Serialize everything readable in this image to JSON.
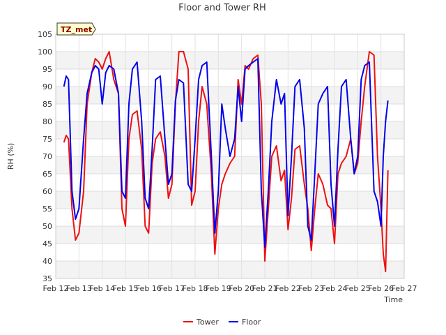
{
  "chart_data": {
    "type": "line",
    "title": "Floor and Tower RH",
    "xlabel": "Time",
    "ylabel": "RH (%)",
    "ylim": [
      35,
      105
    ],
    "yticks": [
      35,
      40,
      45,
      50,
      55,
      60,
      65,
      70,
      75,
      80,
      85,
      90,
      95,
      100,
      105
    ],
    "xlim": [
      12,
      27
    ],
    "xticks": [
      {
        "v": 12,
        "label": "Feb 12"
      },
      {
        "v": 13,
        "label": "Feb 13"
      },
      {
        "v": 14,
        "label": "Feb 14"
      },
      {
        "v": 15,
        "label": "Feb 15"
      },
      {
        "v": 16,
        "label": "Feb 16"
      },
      {
        "v": 17,
        "label": "Feb 17"
      },
      {
        "v": 18,
        "label": "Feb 18"
      },
      {
        "v": 19,
        "label": "Feb 19"
      },
      {
        "v": 20,
        "label": "Feb 20"
      },
      {
        "v": 21,
        "label": "Feb 21"
      },
      {
        "v": 22,
        "label": "Feb 22"
      },
      {
        "v": 23,
        "label": "Feb 23"
      },
      {
        "v": 24,
        "label": "Feb 24"
      },
      {
        "v": 25,
        "label": "Feb 25"
      },
      {
        "v": 26,
        "label": "Feb 26"
      },
      {
        "v": 27,
        "label": "Feb 27"
      }
    ],
    "badge": "TZ_met",
    "legend_position": "bottom-center",
    "series": [
      {
        "name": "Tower",
        "color": "#ee1111",
        "x": [
          12.35,
          12.45,
          12.55,
          12.7,
          12.85,
          13.0,
          13.2,
          13.35,
          13.55,
          13.7,
          13.85,
          14.0,
          14.15,
          14.3,
          14.5,
          14.7,
          14.85,
          15.0,
          15.15,
          15.3,
          15.5,
          15.7,
          15.85,
          16.0,
          16.15,
          16.3,
          16.5,
          16.7,
          16.85,
          17.0,
          17.15,
          17.3,
          17.5,
          17.7,
          17.85,
          18.0,
          18.15,
          18.3,
          18.5,
          18.7,
          18.85,
          19.0,
          19.15,
          19.3,
          19.5,
          19.7,
          19.85,
          20.0,
          20.15,
          20.3,
          20.5,
          20.7,
          20.85,
          21.0,
          21.15,
          21.3,
          21.5,
          21.7,
          21.85,
          22.0,
          22.15,
          22.3,
          22.5,
          22.7,
          22.85,
          23.0,
          23.15,
          23.3,
          23.5,
          23.7,
          23.85,
          24.0,
          24.15,
          24.3,
          24.5,
          24.7,
          24.85,
          25.0,
          25.15,
          25.3,
          25.5,
          25.7,
          25.85,
          26.0,
          26.1,
          26.2,
          26.3
        ],
        "y": [
          74,
          76,
          75,
          55,
          46,
          48,
          60,
          85,
          94,
          98,
          97,
          95,
          98,
          100,
          92,
          88,
          55,
          50,
          75,
          82,
          83,
          72,
          50,
          48,
          68,
          75,
          77,
          70,
          58,
          62,
          85,
          100,
          100,
          95,
          56,
          60,
          80,
          90,
          85,
          65,
          42,
          55,
          62,
          65,
          68,
          70,
          92,
          85,
          96,
          95,
          98,
          99,
          85,
          40,
          55,
          70,
          73,
          63,
          66,
          49,
          58,
          72,
          73,
          62,
          55,
          43,
          55,
          65,
          62,
          56,
          55,
          45,
          65,
          68,
          70,
          75,
          65,
          68,
          80,
          90,
          100,
          99,
          70,
          55,
          42,
          37,
          66
        ]
      },
      {
        "name": "Floor",
        "color": "#0000ee",
        "x": [
          12.35,
          12.45,
          12.55,
          12.7,
          12.85,
          13.0,
          13.2,
          13.35,
          13.55,
          13.7,
          13.85,
          14.0,
          14.15,
          14.3,
          14.5,
          14.7,
          14.85,
          15.0,
          15.15,
          15.3,
          15.5,
          15.7,
          15.85,
          16.0,
          16.15,
          16.3,
          16.5,
          16.7,
          16.85,
          17.0,
          17.15,
          17.3,
          17.5,
          17.7,
          17.85,
          18.0,
          18.15,
          18.3,
          18.5,
          18.7,
          18.85,
          19.0,
          19.15,
          19.3,
          19.5,
          19.7,
          19.85,
          20.0,
          20.15,
          20.3,
          20.5,
          20.7,
          20.85,
          21.0,
          21.15,
          21.3,
          21.5,
          21.7,
          21.85,
          22.0,
          22.15,
          22.3,
          22.5,
          22.7,
          22.85,
          23.0,
          23.15,
          23.3,
          23.5,
          23.7,
          23.85,
          24.0,
          24.15,
          24.3,
          24.5,
          24.7,
          24.85,
          25.0,
          25.15,
          25.3,
          25.5,
          25.7,
          25.85,
          26.0,
          26.1,
          26.2,
          26.3
        ],
        "y": [
          90,
          93,
          92,
          60,
          52,
          55,
          75,
          88,
          94,
          96,
          95,
          85,
          94,
          96,
          95,
          88,
          60,
          58,
          85,
          95,
          97,
          80,
          58,
          55,
          72,
          92,
          93,
          75,
          62,
          65,
          86,
          92,
          91,
          62,
          60,
          75,
          92,
          96,
          97,
          70,
          48,
          60,
          85,
          78,
          70,
          75,
          90,
          80,
          95,
          96,
          97,
          98,
          60,
          44,
          60,
          80,
          92,
          85,
          88,
          53,
          70,
          90,
          92,
          78,
          50,
          46,
          65,
          85,
          88,
          90,
          62,
          50,
          72,
          90,
          92,
          75,
          65,
          70,
          92,
          96,
          97,
          60,
          57,
          50,
          70,
          80,
          86
        ]
      }
    ]
  }
}
